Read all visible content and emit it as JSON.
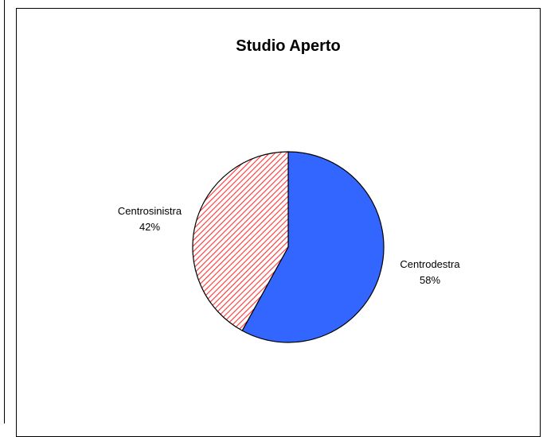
{
  "chart_data": {
    "type": "pie",
    "title": "Studio Aperto",
    "slices": [
      {
        "label": "Centrodestra",
        "value": 58,
        "value_label": "58%",
        "color": "#3366ff",
        "pattern": "solid"
      },
      {
        "label": "Centrosinistra",
        "value": 42,
        "value_label": "42%",
        "color": "#ff3333",
        "pattern": "diagonal-hatch"
      }
    ],
    "start_angle": "12 o'clock",
    "direction": "clockwise",
    "legend": "none"
  }
}
